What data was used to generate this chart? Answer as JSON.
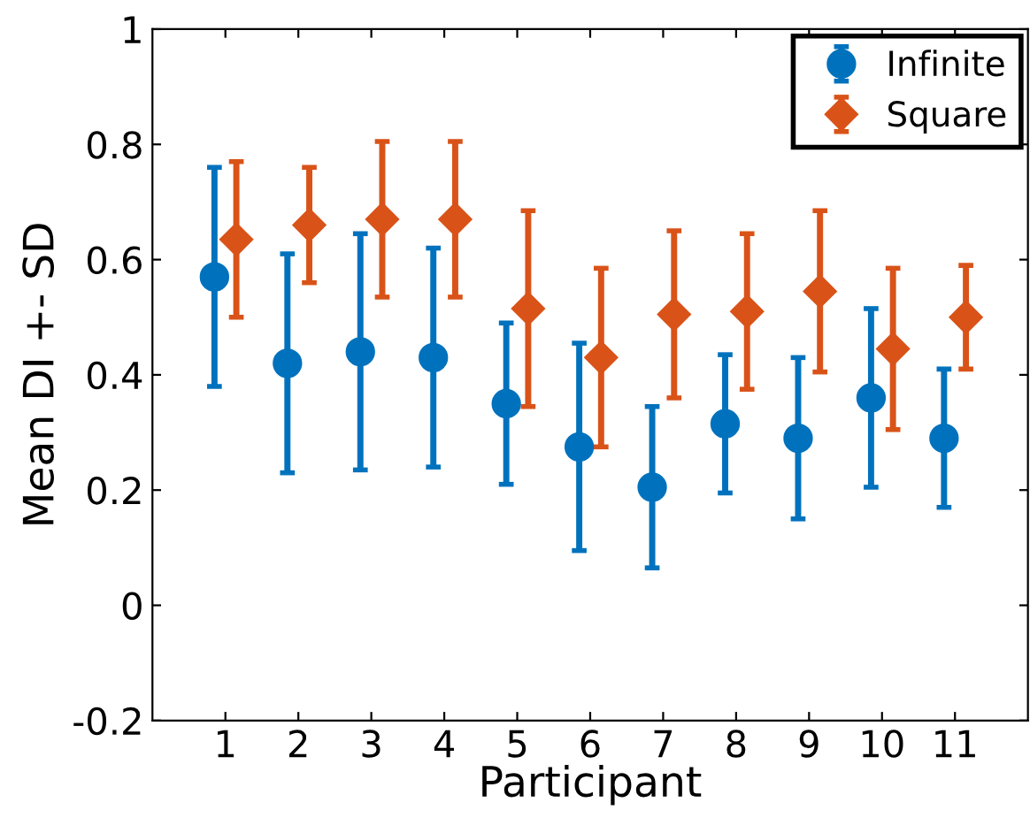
{
  "chart_data": {
    "type": "scatter",
    "xlabel": "Participant",
    "ylabel": "Mean DI +- SD",
    "categories": [
      "1",
      "2",
      "3",
      "4",
      "5",
      "6",
      "7",
      "8",
      "9",
      "10",
      "11"
    ],
    "ylim": [
      -0.2,
      1
    ],
    "yticks": [
      -0.2,
      0,
      0.2,
      0.4,
      0.6,
      0.8,
      1
    ],
    "grid": false,
    "legend": "top right",
    "series": [
      {
        "name": "Infinite",
        "color": "#0072bd",
        "marker": "circle",
        "values": [
          0.57,
          0.42,
          0.44,
          0.43,
          0.35,
          0.275,
          0.205,
          0.315,
          0.29,
          0.36,
          0.29
        ],
        "errors": [
          0.19,
          0.19,
          0.205,
          0.19,
          0.14,
          0.18,
          0.14,
          0.12,
          0.14,
          0.155,
          0.12
        ]
      },
      {
        "name": "Square",
        "color": "#d95319",
        "marker": "diamond",
        "values": [
          0.635,
          0.66,
          0.67,
          0.67,
          0.515,
          0.43,
          0.505,
          0.51,
          0.545,
          0.445,
          0.5
        ],
        "errors": [
          0.135,
          0.1,
          0.135,
          0.135,
          0.17,
          0.155,
          0.145,
          0.135,
          0.14,
          0.14,
          0.09
        ]
      }
    ]
  }
}
